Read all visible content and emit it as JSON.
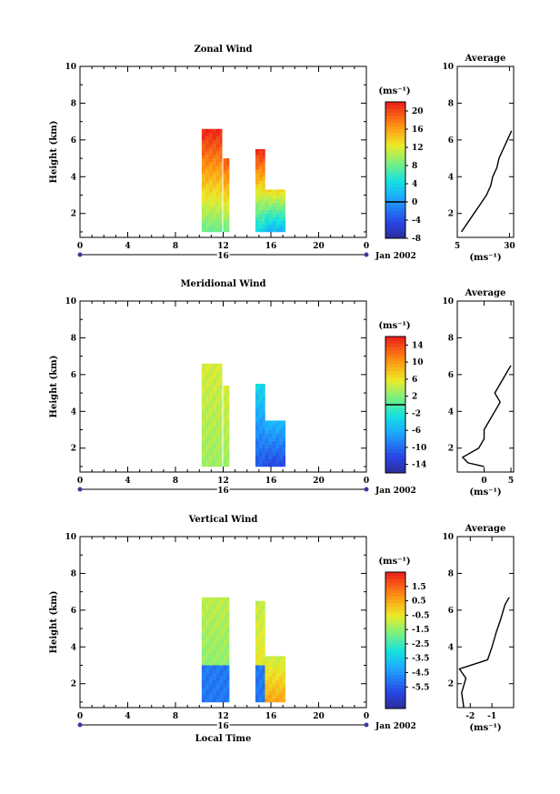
{
  "chart_data": [
    {
      "type": "heatmap",
      "title": "Zonal Wind",
      "ylabel": "Height (km)",
      "xlabel": "",
      "xlim": [
        0,
        24
      ],
      "ylim": [
        0.7,
        10
      ],
      "xticks": [
        "0",
        "4",
        "8",
        "12",
        "16",
        "20",
        "0"
      ],
      "yticks": [
        "2",
        "4",
        "6",
        "8",
        "10"
      ],
      "date_day": "16",
      "date_label": "Jan 2002",
      "colorbar": {
        "unit": "(ms⁻¹)",
        "range": [
          -8,
          22
        ],
        "ticks": [
          "20",
          "16",
          "12",
          "8",
          "4",
          "0",
          "-4",
          "-8"
        ],
        "tick_values": [
          20,
          16,
          12,
          8,
          4,
          0,
          -4,
          -8
        ],
        "zero_line": 0
      },
      "observations": [
        {
          "t_start": 10.2,
          "t_end": 11.9,
          "top_km": 6.6,
          "bottom_km": 1.0,
          "value_top": 22,
          "value_bottom": 8
        },
        {
          "t_start": 12.0,
          "t_end": 12.5,
          "top_km": 5.0,
          "bottom_km": 1.0,
          "value_top": 20,
          "value_bottom": 8
        },
        {
          "t_start": 14.7,
          "t_end": 15.5,
          "top_km": 5.5,
          "bottom_km": 1.0,
          "value_top": 22,
          "value_bottom": 4
        },
        {
          "t_start": 15.5,
          "t_end": 17.2,
          "top_km": 3.3,
          "bottom_km": 1.0,
          "value_top": 14,
          "value_bottom": 2
        }
      ],
      "average": {
        "title": "Average",
        "xlabel": "(ms⁻¹)",
        "xlim": [
          5,
          32
        ],
        "xticks": [
          "5",
          "30"
        ],
        "xtick_values": [
          5,
          30
        ],
        "yticks": [
          "2",
          "4",
          "6",
          "8",
          "10"
        ],
        "height_km": [
          1.0,
          1.5,
          2.0,
          2.5,
          3.0,
          3.5,
          4.0,
          4.5,
          5.0,
          5.5,
          6.0,
          6.5
        ],
        "values": [
          7,
          10,
          13,
          16,
          19,
          21,
          22,
          24,
          25,
          27,
          29,
          31
        ]
      }
    },
    {
      "type": "heatmap",
      "title": "Meridional Wind",
      "ylabel": "Height (km)",
      "xlabel": "",
      "xlim": [
        0,
        24
      ],
      "ylim": [
        0.7,
        10
      ],
      "xticks": [
        "0",
        "4",
        "8",
        "12",
        "16",
        "20",
        "0"
      ],
      "yticks": [
        "2",
        "4",
        "6",
        "8",
        "10"
      ],
      "date_day": "16",
      "date_label": "Jan 2002",
      "colorbar": {
        "unit": "(ms⁻¹)",
        "range": [
          -16,
          16
        ],
        "ticks": [
          "14",
          "10",
          "6",
          "2",
          "-2",
          "-6",
          "-10",
          "-14"
        ],
        "tick_values": [
          14,
          10,
          6,
          2,
          -2,
          -6,
          -10,
          -14
        ],
        "zero_line": 0
      },
      "observations": [
        {
          "t_start": 10.2,
          "t_end": 11.9,
          "top_km": 6.6,
          "bottom_km": 1.0,
          "value_top": 5,
          "value_bottom": 3
        },
        {
          "t_start": 12.0,
          "t_end": 12.5,
          "top_km": 5.4,
          "bottom_km": 1.0,
          "value_top": 5,
          "value_bottom": 3
        },
        {
          "t_start": 14.7,
          "t_end": 15.5,
          "top_km": 5.5,
          "bottom_km": 1.0,
          "value_top": -3,
          "value_bottom": -11
        },
        {
          "t_start": 15.5,
          "t_end": 17.2,
          "top_km": 3.5,
          "bottom_km": 1.0,
          "value_top": -5,
          "value_bottom": -12
        }
      ],
      "average": {
        "title": "Average",
        "xlabel": "(ms⁻¹)",
        "xlim": [
          -5,
          5.5
        ],
        "xticks": [
          "0",
          "5"
        ],
        "xtick_values": [
          0,
          5
        ],
        "yticks": [
          "2",
          "4",
          "6",
          "8",
          "10"
        ],
        "height_km": [
          1.0,
          1.2,
          1.5,
          2.0,
          2.5,
          3.0,
          3.5,
          4.0,
          4.5,
          5.0,
          5.5,
          6.0,
          6.5
        ],
        "values": [
          0,
          -3,
          -4,
          -1,
          0,
          0,
          1,
          2,
          3,
          2,
          3,
          4,
          5
        ]
      }
    },
    {
      "type": "heatmap",
      "title": "Vertical Wind",
      "ylabel": "Height (km)",
      "xlabel": "Local Time",
      "xlim": [
        0,
        24
      ],
      "ylim": [
        0.7,
        10
      ],
      "xticks": [
        "0",
        "4",
        "8",
        "12",
        "16",
        "20",
        "0"
      ],
      "yticks": [
        "2",
        "4",
        "6",
        "8",
        "10"
      ],
      "date_day": "16",
      "date_label": "Jan 2002",
      "colorbar": {
        "unit": "(ms⁻¹)",
        "range": [
          -7,
          2.5
        ],
        "ticks": [
          "1.5",
          "0.5",
          "-0.5",
          "-1.5",
          "-2.5",
          "-3.5",
          "-4.5",
          "-5.5"
        ],
        "tick_values": [
          1.5,
          0.5,
          -0.5,
          -1.5,
          -2.5,
          -3.5,
          -4.5,
          -5.5
        ],
        "zero_line": null
      },
      "observations": [
        {
          "t_start": 10.2,
          "t_end": 12.5,
          "top_km": 6.7,
          "bottom_km": 3.0,
          "value_top": -1.0,
          "value_bottom": -1.5
        },
        {
          "t_start": 10.2,
          "t_end": 12.5,
          "top_km": 3.0,
          "bottom_km": 1.0,
          "value_top": -5.0,
          "value_bottom": -5.0
        },
        {
          "t_start": 14.7,
          "t_end": 15.5,
          "top_km": 6.5,
          "bottom_km": 3.0,
          "value_top": -1.0,
          "value_bottom": -0.5
        },
        {
          "t_start": 14.7,
          "t_end": 15.5,
          "top_km": 3.0,
          "bottom_km": 1.0,
          "value_top": -5.0,
          "value_bottom": -5.0
        },
        {
          "t_start": 15.5,
          "t_end": 17.2,
          "top_km": 3.5,
          "bottom_km": 1.0,
          "value_top": -1.0,
          "value_bottom": 0.5
        }
      ],
      "average": {
        "title": "Average",
        "xlabel": "(ms⁻¹)",
        "xlim": [
          -2.6,
          0
        ],
        "xticks": [
          "-2",
          "-1"
        ],
        "xtick_values": [
          -2,
          -1
        ],
        "yticks": [
          "2",
          "4",
          "6",
          "8",
          "10"
        ],
        "height_km": [
          0.7,
          1.5,
          2.3,
          2.8,
          3.3,
          4.0,
          4.8,
          5.5,
          6.3,
          6.7
        ],
        "values": [
          -2.3,
          -2.4,
          -2.2,
          -2.5,
          -1.2,
          -1.0,
          -0.8,
          -0.6,
          -0.4,
          -0.2
        ]
      }
    }
  ]
}
